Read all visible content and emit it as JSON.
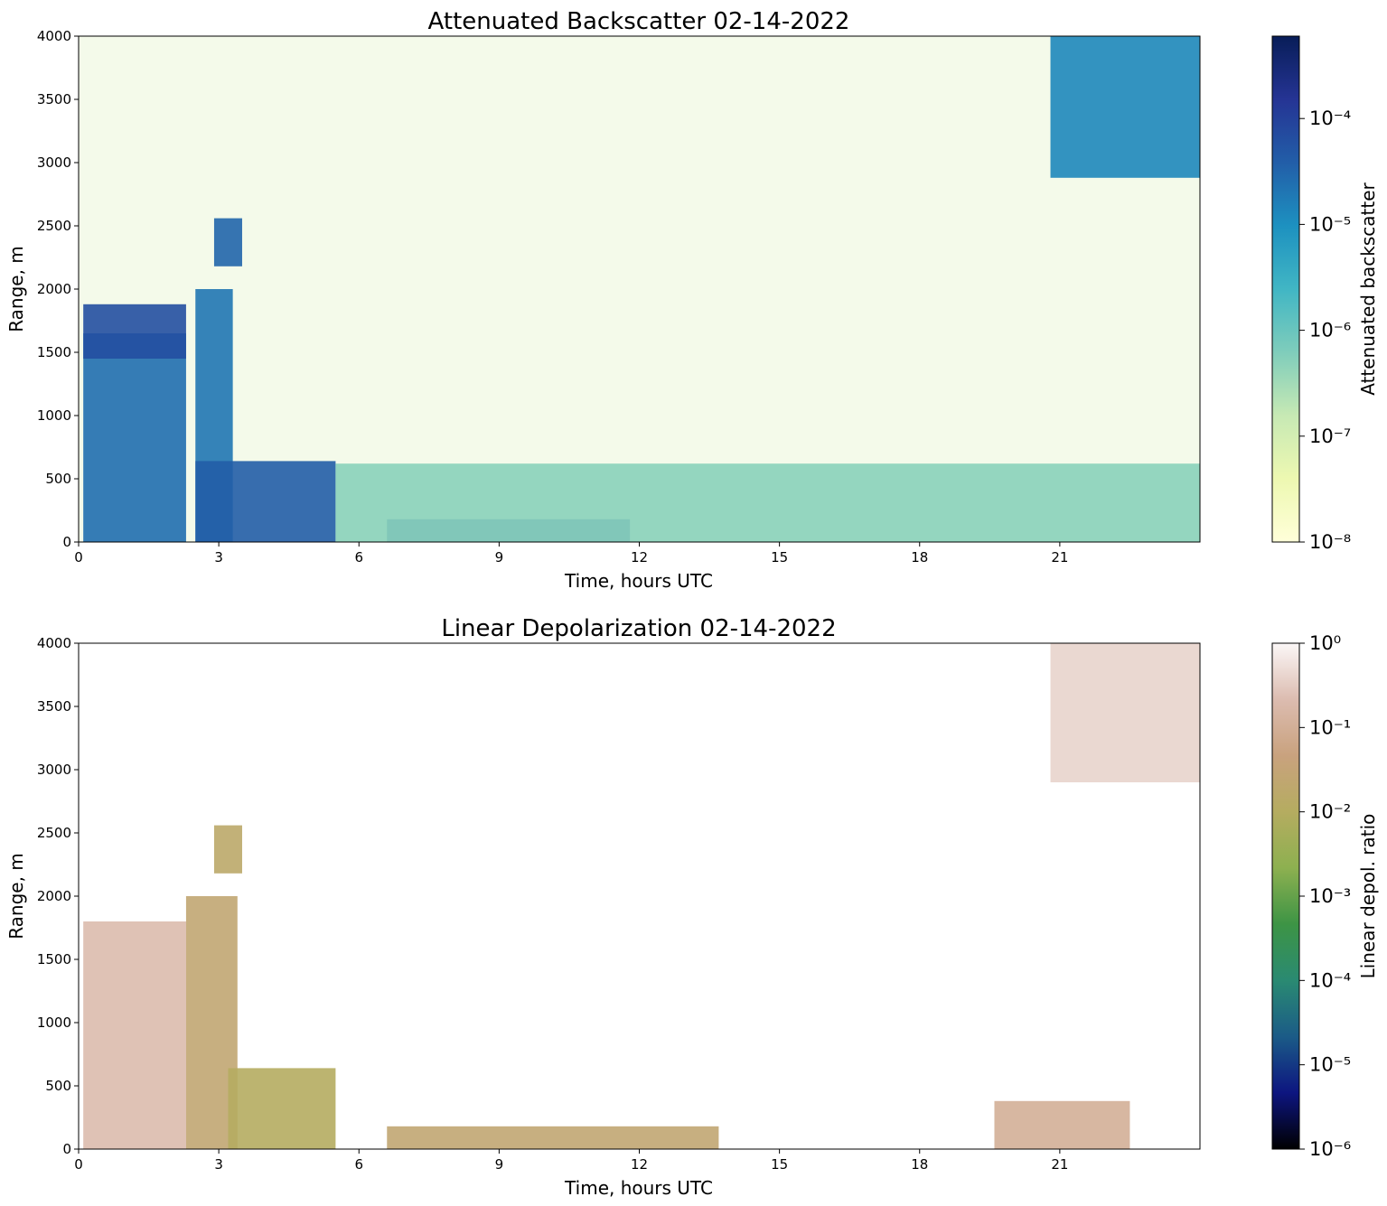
{
  "chart_data": [
    {
      "type": "heatmap",
      "title": "Attenuated Backscatter 02-14-2022",
      "xlabel": "Time, hours UTC",
      "ylabel": "Range, m",
      "xlim": [
        0,
        24
      ],
      "ylim": [
        0,
        4000
      ],
      "x_ticks": [
        0,
        3,
        6,
        9,
        12,
        15,
        18,
        21
      ],
      "y_ticks": [
        0,
        500,
        1000,
        1500,
        2000,
        2500,
        3000,
        3500,
        4000
      ],
      "colorbar": {
        "label": "Attenuated backscatter",
        "scale": "log",
        "range": [
          1e-08,
          0.0006
        ],
        "tick_exponents": [
          -8,
          -7,
          -6,
          -5,
          -4
        ],
        "colormap": "YlGnBu",
        "stops": [
          "#ffffd9",
          "#edf8b1",
          "#c7e9b4",
          "#7fcdbb",
          "#41b6c4",
          "#1d91c0",
          "#225ea8",
          "#253494",
          "#081d58"
        ]
      },
      "features": [
        {
          "description": "dense cloud layer",
          "x": [
            0.1,
            2.3
          ],
          "y": [
            0,
            1650
          ],
          "log10_value": -4.6
        },
        {
          "description": "cloud top",
          "x": [
            0.1,
            2.3
          ],
          "y": [
            1450,
            1880
          ],
          "log10_value": -4.2
        },
        {
          "description": "cloud column",
          "x": [
            2.5,
            3.3
          ],
          "y": [
            0,
            2000
          ],
          "log10_value": -4.7
        },
        {
          "description": "elevated cloud patch",
          "x": [
            2.9,
            3.5
          ],
          "y": [
            2180,
            2560
          ],
          "log10_value": -4.5
        },
        {
          "description": "low cloud",
          "x": [
            2.5,
            5.5
          ],
          "y": [
            0,
            640
          ],
          "log10_value": -4.4
        },
        {
          "description": "low cloud layer",
          "x": [
            6.6,
            11.8
          ],
          "y": [
            0,
            180
          ],
          "log10_value": -4.3
        },
        {
          "description": "high cloud",
          "x": [
            20.8,
            24.0
          ],
          "y": [
            2880,
            4000
          ],
          "log10_value": -4.9
        },
        {
          "description": "boundary layer aerosol",
          "x": [
            5.5,
            24.0
          ],
          "y": [
            0,
            620
          ],
          "log10_value": -6.3
        }
      ]
    },
    {
      "type": "heatmap",
      "title": "Linear Depolarization 02-14-2022",
      "xlabel": "Time, hours UTC",
      "ylabel": "Range, m",
      "xlim": [
        0,
        24
      ],
      "ylim": [
        0,
        4000
      ],
      "x_ticks": [
        0,
        3,
        6,
        9,
        12,
        15,
        18,
        21
      ],
      "y_ticks": [
        0,
        500,
        1000,
        1500,
        2000,
        2500,
        3000,
        3500,
        4000
      ],
      "colorbar": {
        "label": "Linear depol. ratio",
        "scale": "log",
        "range": [
          1e-06,
          1
        ],
        "tick_exponents": [
          -6,
          -5,
          -4,
          -3,
          -2,
          -1,
          0
        ],
        "colormap": "gist_earth",
        "stops": [
          "#000000",
          "#0d1580",
          "#1b5b87",
          "#2a8a72",
          "#3d9445",
          "#8db050",
          "#b5ac60",
          "#c9a27e",
          "#dcbcb0",
          "#fbf7f7"
        ]
      },
      "features": [
        {
          "description": "high depol. cloud",
          "x": [
            0.1,
            2.3
          ],
          "y": [
            0,
            1800
          ],
          "log10_value": -0.7
        },
        {
          "description": "cloud column",
          "x": [
            2.3,
            3.4
          ],
          "y": [
            0,
            2000
          ],
          "log10_value": -1.6
        },
        {
          "description": "elevated patch",
          "x": [
            2.9,
            3.5
          ],
          "y": [
            2180,
            2560
          ],
          "log10_value": -1.8
        },
        {
          "description": "low layer",
          "x": [
            3.2,
            5.5
          ],
          "y": [
            0,
            640
          ],
          "log10_value": -2.0
        },
        {
          "description": "low layer",
          "x": [
            6.6,
            13.7
          ],
          "y": [
            0,
            180
          ],
          "log10_value": -1.6
        },
        {
          "description": "high cloud",
          "x": [
            20.8,
            24.0
          ],
          "y": [
            2900,
            4000
          ],
          "log10_value": -0.4
        },
        {
          "description": "patches",
          "x": [
            19.6,
            22.5
          ],
          "y": [
            0,
            380
          ],
          "log10_value": -1.0
        }
      ]
    }
  ]
}
